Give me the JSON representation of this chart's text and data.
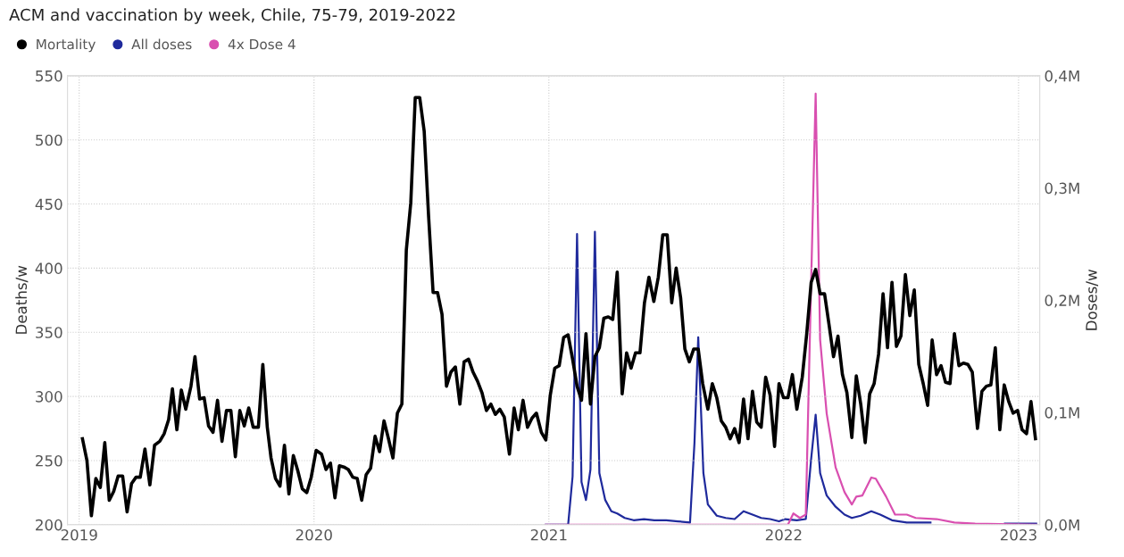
{
  "chart_data": {
    "type": "line",
    "title": "ACM and vaccination by week, Chile, 75-79, 2019-2022",
    "ylabel": "Deaths/w",
    "y2label": "Doses/w",
    "xlim": [
      2018.95,
      2023.09
    ],
    "xticks": [
      2019,
      2020,
      2021,
      2022,
      2023
    ],
    "ylim": [
      200,
      550
    ],
    "yticks": [
      200,
      250,
      300,
      350,
      400,
      450,
      500,
      550
    ],
    "y2lim": [
      0,
      0.4
    ],
    "y2ticks": [
      {
        "value": 0,
        "label": "0,0M"
      },
      {
        "value": 0.1,
        "label": "0,1M"
      },
      {
        "value": 0.2,
        "label": "0,2M"
      },
      {
        "value": 0.3,
        "label": "0,3M"
      },
      {
        "value": 0.4,
        "label": "0,4M"
      }
    ],
    "grid": true,
    "legend": "top left",
    "marker": "none",
    "line_style": "solid",
    "series": [
      {
        "name": "Mortality",
        "color": "#000000",
        "x": [
          2019.014,
          2019.033,
          2019.052,
          2019.071,
          2019.09,
          2019.109,
          2019.128,
          2019.147,
          2019.166,
          2019.185,
          2019.204,
          2019.223,
          2019.242,
          2019.26,
          2019.28,
          2019.301,
          2019.321,
          2019.343,
          2019.362,
          2019.381,
          2019.397,
          2019.416,
          2019.435,
          2019.454,
          2019.476,
          2019.493,
          2019.513,
          2019.532,
          2019.551,
          2019.57,
          2019.589,
          2019.608,
          2019.627,
          2019.646,
          2019.665,
          2019.684,
          2019.703,
          2019.722,
          2019.741,
          2019.763,
          2019.782,
          2019.801,
          2019.817,
          2019.836,
          2019.855,
          2019.874,
          2019.893,
          2019.912,
          2019.931,
          2019.95,
          2019.969,
          2019.988,
          2020.009,
          2020.032,
          2020.051,
          2020.07,
          2020.089,
          2020.108,
          2020.127,
          2020.146,
          2020.165,
          2020.184,
          2020.203,
          2020.222,
          2020.241,
          2020.26,
          2020.279,
          2020.298,
          2020.317,
          2020.336,
          2020.355,
          2020.374,
          2020.393,
          2020.412,
          2020.431,
          2020.45,
          2020.469,
          2020.488,
          2020.507,
          2020.526,
          2020.545,
          2020.564,
          2020.583,
          2020.602,
          2020.621,
          2020.639,
          2020.658,
          2020.677,
          2020.696,
          2020.715,
          2020.734,
          2020.753,
          2020.772,
          2020.791,
          2020.81,
          2020.832,
          2020.852,
          2020.87,
          2020.89,
          2020.909,
          2020.928,
          2020.947,
          2020.968,
          2020.987,
          2021.006,
          2021.025,
          2021.044,
          2021.063,
          2021.082,
          2021.101,
          2021.12,
          2021.139,
          2021.158,
          2021.177,
          2021.196,
          2021.215,
          2021.234,
          2021.253,
          2021.272,
          2021.291,
          2021.312,
          2021.331,
          2021.35,
          2021.369,
          2021.388,
          2021.407,
          2021.426,
          2021.447,
          2021.466,
          2021.485,
          2021.504,
          2021.523,
          2021.542,
          2021.561,
          2021.579,
          2021.598,
          2021.617,
          2021.636,
          2021.655,
          2021.677,
          2021.696,
          2021.715,
          2021.734,
          2021.753,
          2021.772,
          2021.791,
          2021.81,
          2021.829,
          2021.848,
          2021.867,
          2021.885,
          2021.904,
          2021.923,
          2021.942,
          2021.961,
          2021.98,
          2021.999,
          2022.018,
          2022.037,
          2022.056,
          2022.079,
          2022.098,
          2022.117,
          2022.136,
          2022.155,
          2022.174,
          2022.193,
          2022.212,
          2022.231,
          2022.25,
          2022.269,
          2022.29,
          2022.309,
          2022.328,
          2022.347,
          2022.366,
          2022.385,
          2022.404,
          2022.423,
          2022.442,
          2022.461,
          2022.48,
          2022.499,
          2022.518,
          2022.537,
          2022.556,
          2022.575,
          2022.594,
          2022.613,
          2022.632,
          2022.651,
          2022.67,
          2022.689,
          2022.708,
          2022.727,
          2022.746,
          2022.765,
          2022.784,
          2022.803,
          2022.825,
          2022.844,
          2022.863,
          2022.882,
          2022.901,
          2022.92,
          2022.939,
          2022.958,
          2022.977,
          2022.996,
          2023.015,
          2023.034,
          2023.053,
          2023.072
        ],
        "values": [
          267,
          250,
          207,
          236,
          229,
          264,
          219,
          226,
          238,
          238,
          210,
          232,
          237,
          237,
          259,
          231,
          262,
          265,
          271,
          282,
          306,
          274,
          305,
          290,
          308,
          331,
          298,
          299,
          277,
          272,
          297,
          265,
          289,
          289,
          253,
          289,
          277,
          291,
          276,
          276,
          325,
          276,
          252,
          236,
          230,
          262,
          224,
          254,
          242,
          228,
          225,
          237,
          258,
          255,
          243,
          248,
          221,
          246,
          245,
          243,
          237,
          236,
          219,
          239,
          244,
          269,
          257,
          281,
          267,
          252,
          287,
          294,
          414,
          451,
          533,
          533,
          507,
          440,
          381,
          381,
          364,
          308,
          319,
          323,
          294,
          327,
          329,
          319,
          312,
          303,
          289,
          294,
          286,
          290,
          284,
          255,
          291,
          274,
          297,
          276,
          283,
          287,
          272,
          266,
          301,
          322,
          324,
          346,
          348,
          329,
          308,
          297,
          349,
          294,
          331,
          338,
          361,
          362,
          360,
          397,
          302,
          334,
          322,
          334,
          334,
          373,
          393,
          374,
          393,
          426,
          426,
          373,
          400,
          377,
          337,
          327,
          337,
          337,
          310,
          290,
          310,
          299,
          281,
          276,
          267,
          275,
          264,
          298,
          267,
          304,
          280,
          276,
          315,
          301,
          261,
          310,
          299,
          299,
          317,
          290,
          315,
          349,
          389,
          399,
          380,
          380,
          356,
          331,
          347,
          317,
          303,
          268,
          316,
          294,
          264,
          302,
          310,
          333,
          380,
          338,
          389,
          339,
          347,
          395,
          363,
          383,
          325,
          310,
          293,
          344,
          317,
          324,
          311,
          310,
          349,
          324,
          326,
          325,
          319,
          275,
          304,
          308,
          309,
          338,
          274,
          309,
          296,
          287,
          289,
          274,
          271,
          296,
          267
        ]
      },
      {
        "name": "All doses",
        "color": "#1f2a9c",
        "axis": "y2",
        "x": [
          2020.987,
          2021.082,
          2021.101,
          2021.12,
          2021.139,
          2021.158,
          2021.177,
          2021.196,
          2021.215,
          2021.24,
          2021.266,
          2021.291,
          2021.323,
          2021.361,
          2021.405,
          2021.449,
          2021.5,
          2021.55,
          2021.601,
          2021.62,
          2021.636,
          2021.658,
          2021.677,
          2021.715,
          2021.753,
          2021.791,
          2021.829,
          2021.867,
          2021.904,
          2021.942,
          2021.98,
          2022.006,
          2022.056,
          2022.094,
          2022.117,
          2022.136,
          2022.155,
          2022.183,
          2022.221,
          2022.259,
          2022.29,
          2022.328,
          2022.373,
          2022.411,
          2022.461,
          2022.524,
          2022.625,
          2022.752,
          2022.942,
          2023.075
        ],
        "values": [
          0,
          0,
          0.043,
          0.259,
          0.038,
          0.022,
          0.049,
          0.261,
          0.046,
          0.022,
          0.012,
          0.01,
          0.006,
          0.004,
          0.005,
          0.004,
          0.004,
          0.003,
          0.002,
          0.073,
          0.167,
          0.046,
          0.018,
          0.008,
          0.006,
          0.005,
          0.012,
          0.009,
          0.006,
          0.005,
          0.003,
          0.005,
          0.004,
          0.005,
          0.059,
          0.098,
          0.046,
          0.026,
          0.016,
          0.009,
          0.006,
          0.008,
          0.012,
          0.009,
          0.004,
          0.002,
          0.002,
          null,
          0.001,
          0.001
        ]
      },
      {
        "name": "4x Dose 4",
        "color": "#d94fb0",
        "axis": "y2",
        "x": [
          2020.987,
          2022.018,
          2022.041,
          2022.069,
          2022.094,
          2022.117,
          2022.136,
          2022.155,
          2022.183,
          2022.221,
          2022.259,
          2022.29,
          2022.309,
          2022.335,
          2022.373,
          2022.392,
          2022.436,
          2022.474,
          2022.524,
          2022.562,
          2022.651,
          2022.727,
          2022.815,
          2023.075
        ],
        "values": [
          0,
          0,
          0.01,
          0.006,
          0.009,
          0.218,
          0.384,
          0.165,
          0.099,
          0.051,
          0.029,
          0.018,
          0.025,
          0.026,
          0.042,
          0.041,
          0.025,
          0.009,
          0.009,
          0.006,
          0.005,
          0.002,
          0.001,
          0
        ]
      }
    ]
  }
}
